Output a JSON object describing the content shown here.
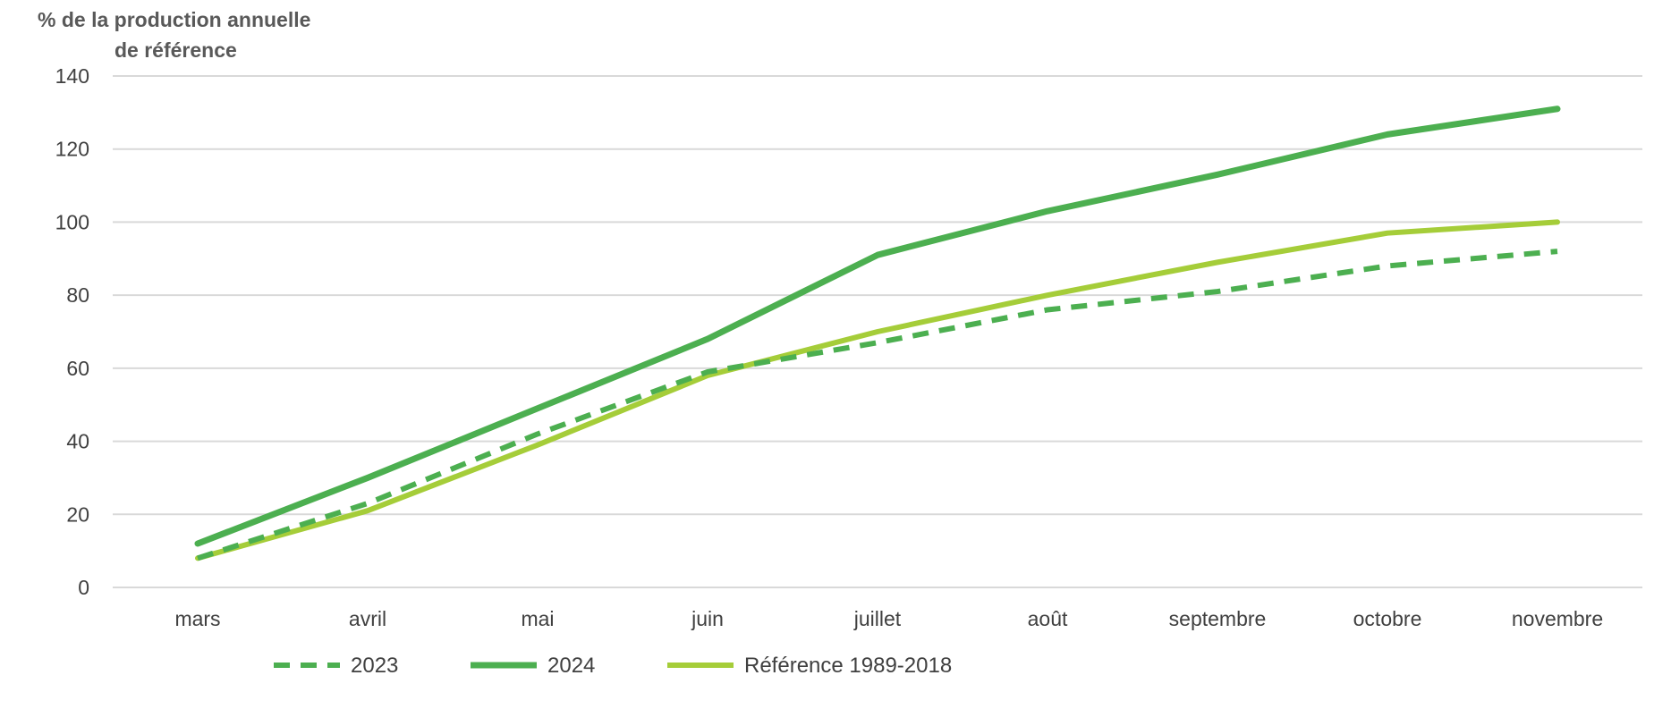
{
  "chart_data": {
    "type": "line",
    "ylabel": [
      "% de  la production  annuelle",
      "de référence"
    ],
    "ylim": [
      0,
      140
    ],
    "yticks": [
      "0",
      "20",
      "40",
      "60",
      "80",
      "100",
      "120",
      "140"
    ],
    "categories": [
      "mars",
      "avril",
      "mai",
      "juin",
      "juillet",
      "août",
      "septembre",
      "octobre",
      "novembre"
    ],
    "grid": true,
    "legend_position": "bottom",
    "series": [
      {
        "name": "2023",
        "color": "#4CAF50",
        "style": "dashed",
        "values": [
          8,
          23,
          42,
          59,
          67,
          76,
          81,
          88,
          92
        ]
      },
      {
        "name": "2024",
        "color": "#4CAF50",
        "style": "solid",
        "values": [
          12,
          30,
          49,
          68,
          91,
          103,
          113,
          124,
          131
        ]
      },
      {
        "name": "Référence 1989-2018",
        "color": "#A5CD39",
        "style": "solid",
        "values": [
          8,
          21,
          39,
          58,
          70,
          80,
          89,
          97,
          100
        ]
      }
    ]
  }
}
